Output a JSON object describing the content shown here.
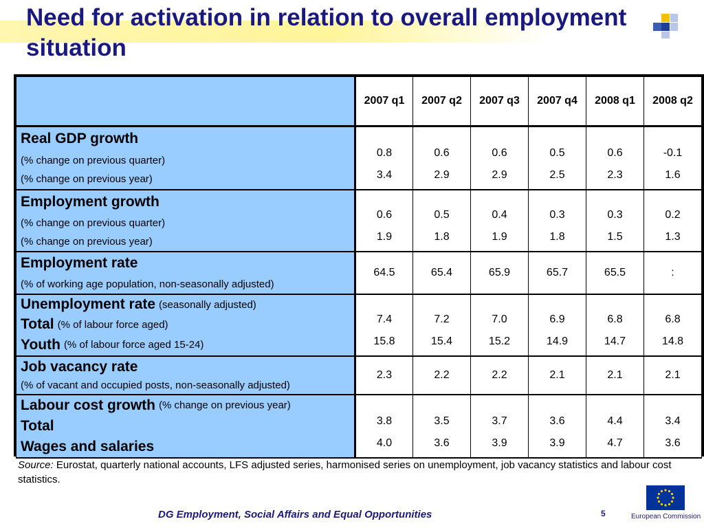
{
  "title": "Need for activation in relation to overall employment situation",
  "columns": [
    "2007 q1",
    "2007 q2",
    "2007 q3",
    "2007 q4",
    "2008 q1",
    "2008 q2"
  ],
  "groups": [
    {
      "heading": "Real GDP growth",
      "heading_note": "",
      "rows": [
        {
          "label": "(% change on previous quarter)",
          "label_bold": "",
          "values": [
            "0.8",
            "0.6",
            "0.6",
            "0.5",
            "0.6",
            "-0.1"
          ]
        },
        {
          "label": "(% change on previous year)",
          "label_bold": "",
          "values": [
            "3.4",
            "2.9",
            "2.9",
            "2.5",
            "2.3",
            "1.6"
          ]
        }
      ]
    },
    {
      "heading": "Employment growth",
      "heading_note": "",
      "rows": [
        {
          "label": "(% change on previous quarter)",
          "label_bold": "",
          "values": [
            "0.6",
            "0.5",
            "0.4",
            "0.3",
            "0.3",
            "0.2"
          ]
        },
        {
          "label": "(% change on previous year)",
          "label_bold": "",
          "values": [
            "1.9",
            "1.8",
            "1.9",
            "1.8",
            "1.5",
            "1.3"
          ]
        }
      ]
    },
    {
      "heading": "Employment rate",
      "heading_note": "",
      "sub": "(% of working age population, non-seasonally adjusted)",
      "values": [
        "64.5",
        "65.4",
        "65.9",
        "65.7",
        "65.5",
        ":"
      ]
    },
    {
      "heading": "Unemployment rate",
      "heading_note": "(seasonally adjusted)",
      "rows": [
        {
          "label_bold": "Total",
          "label": "(% of labour force aged)",
          "values": [
            "7.4",
            "7.2",
            "7.0",
            "6.9",
            "6.8",
            "6.8"
          ]
        },
        {
          "label_bold": "Youth",
          "label": "(% of labour force aged 15-24)",
          "values": [
            "15.8",
            "15.4",
            "15.2",
            "14.9",
            "14.7",
            "14.8"
          ]
        }
      ]
    },
    {
      "heading": "Job vacancy rate",
      "heading_note": "",
      "sub": "(% of vacant and occupied posts, non-seasonally adjusted)",
      "values": [
        "2.3",
        "2.2",
        "2.2",
        "2.1",
        "2.1",
        "2.1"
      ]
    },
    {
      "heading": "Labour cost growth",
      "heading_note": "(% change on previous year)",
      "rows": [
        {
          "label_bold": "Total",
          "label": "",
          "values": [
            "3.8",
            "3.5",
            "3.7",
            "3.6",
            "4.4",
            "3.4"
          ]
        },
        {
          "label_bold": "Wages and salaries",
          "label": "",
          "values": [
            "4.0",
            "3.6",
            "3.9",
            "3.9",
            "4.7",
            "3.6"
          ]
        }
      ]
    }
  ],
  "source_label": "Source:",
  "source_text": "Eurostat, quarterly national accounts, LFS adjusted series, harmonised series on unemployment, job vacancy statistics and labour cost statistics.",
  "footer": "DG Employment, Social Affairs and Equal Opportunities",
  "page_number": "5",
  "eu_label": "European Commission",
  "colors": {
    "label_bg": "#99ccff",
    "title": "#1a1a7e",
    "band": "#fff59a"
  }
}
